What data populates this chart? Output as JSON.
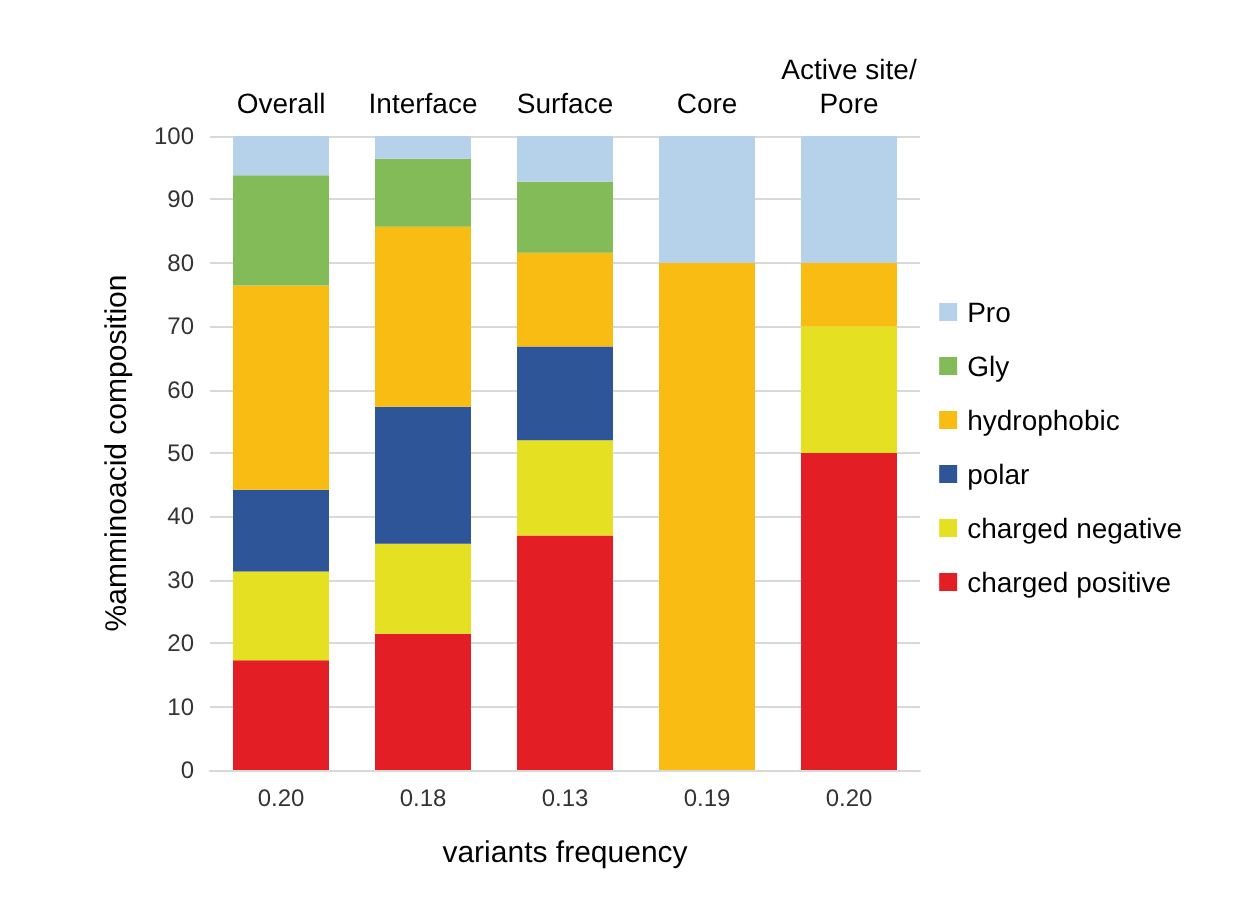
{
  "chart_data": {
    "type": "bar",
    "stacked": true,
    "xlabel": "variants frequency",
    "ylabel": "%amminoacid composition",
    "categories": [
      "0.20",
      "0.18",
      "0.13",
      "0.19",
      "0.20"
    ],
    "annotations": [
      "Overall",
      "Interface",
      "Surface",
      "Core",
      "Active site/Pore"
    ],
    "series": [
      {
        "name": "charged positive",
        "color": "#e31e24",
        "values": [
          17.3,
          21.5,
          37.0,
          0,
          50
        ]
      },
      {
        "name": "charged negative",
        "color": "#e6e022",
        "values": [
          14.0,
          14.2,
          15.0,
          0,
          20
        ]
      },
      {
        "name": "polar",
        "color": "#2e5597",
        "values": [
          12.9,
          21.6,
          14.8,
          0,
          0
        ]
      },
      {
        "name": "hydrophobic",
        "color": "#f8bc12",
        "values": [
          32.2,
          28.4,
          14.8,
          80,
          10
        ]
      },
      {
        "name": "Gly",
        "color": "#84bb59",
        "values": [
          17.4,
          10.7,
          11.2,
          0,
          0
        ]
      },
      {
        "name": "Pro",
        "color": "#b6d1ea",
        "values": [
          6.2,
          3.6,
          7.2,
          20,
          20
        ]
      }
    ],
    "ylim": [
      0,
      100
    ],
    "yticks": [
      0,
      10,
      20,
      30,
      40,
      50,
      60,
      70,
      80,
      90,
      100
    ],
    "grid": "y",
    "legend": "right"
  }
}
